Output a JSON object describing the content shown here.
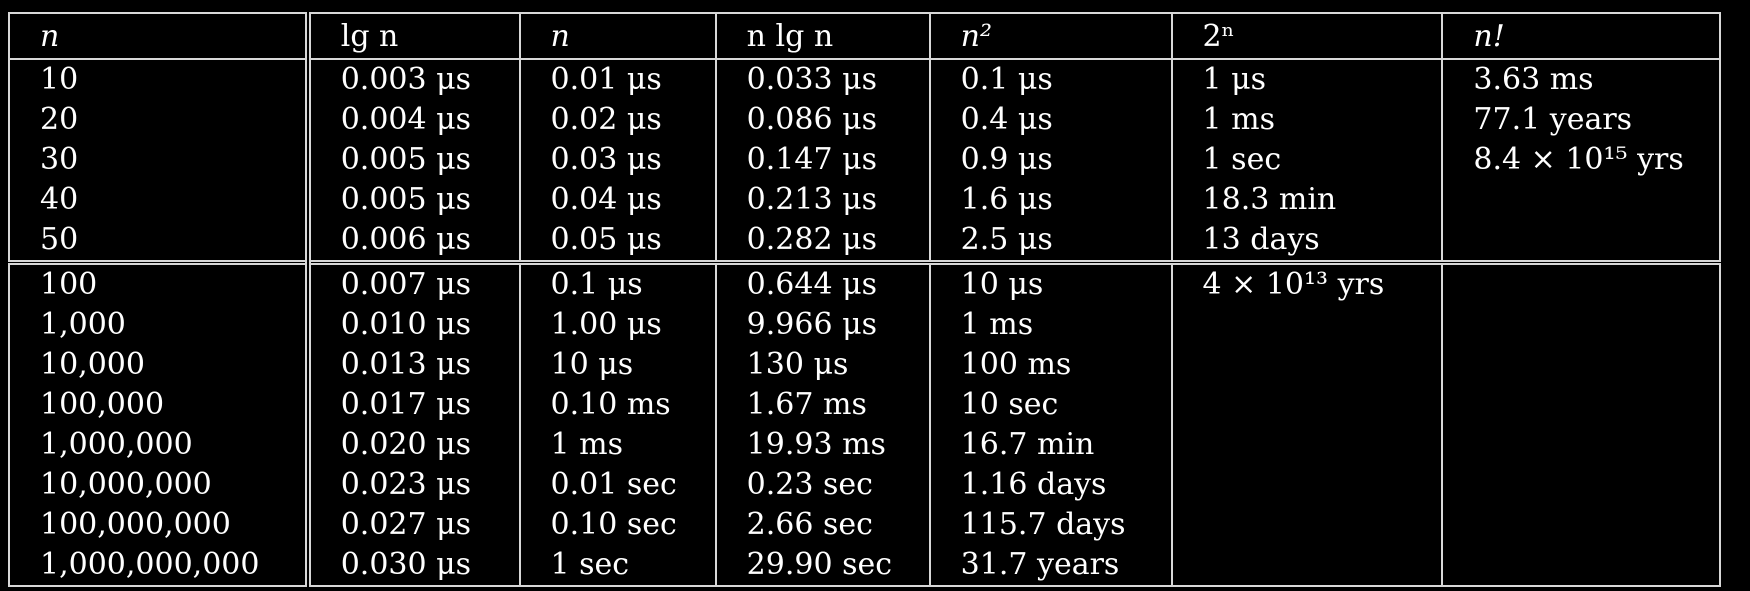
{
  "headers": [
    "n",
    "lg n",
    "n",
    "n lg n",
    "n²",
    "2ⁿ",
    "n!"
  ],
  "rows": [
    [
      "10",
      "0.003 μs",
      "0.01 μs",
      "0.033 μs",
      "0.1 μs",
      "1 μs",
      "3.63 ms"
    ],
    [
      "20",
      "0.004 μs",
      "0.02 μs",
      "0.086 μs",
      "0.4 μs",
      "1 ms",
      "77.1 years"
    ],
    [
      "30",
      "0.005 μs",
      "0.03 μs",
      "0.147 μs",
      "0.9 μs",
      "1 sec",
      "8.4 × 10¹⁵ yrs"
    ],
    [
      "40",
      "0.005 μs",
      "0.04 μs",
      "0.213 μs",
      "1.6 μs",
      "18.3 min",
      ""
    ],
    [
      "50",
      "0.006 μs",
      "0.05 μs",
      "0.282 μs",
      "2.5 μs",
      "13 days",
      ""
    ],
    [
      "100",
      "0.007 μs",
      "0.1 μs",
      "0.644 μs",
      "10 μs",
      "4 × 10¹³ yrs",
      ""
    ],
    [
      "1,000",
      "0.010 μs",
      "1.00 μs",
      "9.966 μs",
      "1 ms",
      "",
      ""
    ],
    [
      "10,000",
      "0.013 μs",
      "10 μs",
      "130 μs",
      "100 ms",
      "",
      ""
    ],
    [
      "100,000",
      "0.017 μs",
      "0.10 ms",
      "1.67 ms",
      "10 sec",
      "",
      ""
    ],
    [
      "1,000,000",
      "0.020 μs",
      "1 ms",
      "19.93 ms",
      "16.7 min",
      "",
      ""
    ],
    [
      "10,000,000",
      "0.023 μs",
      "0.01 sec",
      "0.23 sec",
      "1.16 days",
      "",
      ""
    ],
    [
      "100,000,000",
      "0.027 μs",
      "0.10 sec",
      "2.66 sec",
      "115.7 days",
      "",
      ""
    ],
    [
      "1,000,000,000",
      "0.030 μs",
      "1 sec",
      "29.90 sec",
      "31.7 years",
      "",
      ""
    ]
  ]
}
